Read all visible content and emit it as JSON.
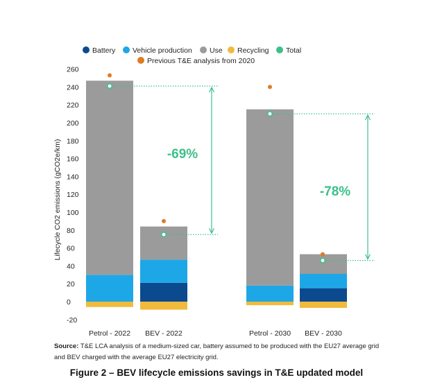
{
  "chart_data": {
    "type": "bar",
    "categories": [
      "Petrol - 2022",
      "BEV - 2022",
      "Petrol - 2030",
      "BEV - 2030"
    ],
    "ylabel": "Lifecycle CO2 emissions (gCO2e/km)",
    "ylim": [
      -20,
      260
    ],
    "yticks": [
      -20,
      0,
      20,
      40,
      60,
      80,
      100,
      120,
      140,
      160,
      180,
      200,
      220,
      240,
      260
    ],
    "legend_position": "top",
    "series": [
      {
        "name": "Battery",
        "color": "#0b4a8f",
        "values": [
          0,
          21,
          0,
          15
        ]
      },
      {
        "name": "Vehicle production",
        "color": "#1ea7e6",
        "values": [
          30,
          26,
          18,
          16
        ]
      },
      {
        "name": "Use",
        "color": "#9b9b9b",
        "values": [
          217,
          37,
          197,
          22
        ]
      },
      {
        "name": "Recycling",
        "color": "#f0bb3c",
        "values": [
          -6,
          -9,
          -4,
          -7
        ]
      }
    ],
    "totals": {
      "name": "Total",
      "color": "#3cc08a",
      "values": [
        241,
        75,
        210,
        46
      ]
    },
    "previous": {
      "name": "Previous T&E analysis from 2020",
      "color": "#e07b24",
      "values": [
        253,
        90,
        240,
        53
      ]
    },
    "annotations": [
      {
        "text": "-69%",
        "from": 241,
        "to": 75,
        "between": [
          0,
          1
        ],
        "color": "#3cc08a"
      },
      {
        "text": "-78%",
        "from": 210,
        "to": 46,
        "between": [
          2,
          3
        ],
        "color": "#3cc08a"
      }
    ]
  },
  "source_label": "Source:",
  "source_text": "T&E LCA analysis of a medium-sized car, battery assumed to be produced with the EU27 average grid and BEV charged with the average EU27 electricity grid.",
  "caption": "Figure 2 – BEV lifecycle emissions savings in T&E updated model"
}
